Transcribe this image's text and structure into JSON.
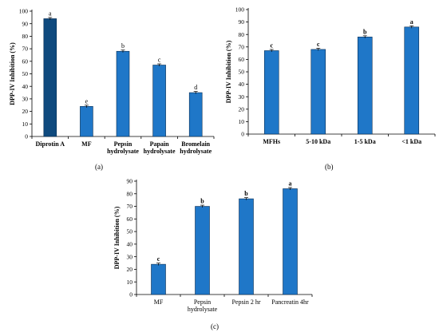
{
  "panel_labels": {
    "a": "(a)",
    "b": "(b)",
    "c": "(c)"
  },
  "colors": {
    "bar": "#1f77c8",
    "bar_dark": "#0f4a7e",
    "bar_edge": "#0a2e52"
  },
  "chart_data": [
    {
      "id": "a",
      "type": "bar",
      "ylabel": "DPP-IV Inhibition (%)",
      "xlabel": "",
      "ylim": [
        0,
        100
      ],
      "yticks": [
        0,
        10,
        20,
        30,
        40,
        50,
        60,
        70,
        80,
        90,
        100
      ],
      "categories": [
        [
          "Diprotin A"
        ],
        [
          "MF"
        ],
        [
          "Pepsin",
          "hydrolysate"
        ],
        [
          "Papain",
          "hydrolysate"
        ],
        [
          "Bromelain",
          "hydrolysate"
        ]
      ],
      "values": [
        94,
        24,
        68,
        57,
        35
      ],
      "letters": [
        "a",
        "e",
        "b",
        "c",
        "d"
      ],
      "highlight": [
        0
      ]
    },
    {
      "id": "b",
      "type": "bar",
      "ylabel": "DPP-IV Inhibition (%)",
      "xlabel": "",
      "ylim": [
        0,
        100
      ],
      "yticks": [
        0,
        10,
        20,
        30,
        40,
        50,
        60,
        70,
        80,
        90,
        100
      ],
      "categories": [
        [
          "MFHs"
        ],
        [
          "5-10 kDa"
        ],
        [
          "1-5 kDa"
        ],
        [
          "<1 kDa"
        ]
      ],
      "values": [
        67,
        68,
        78,
        86
      ],
      "letters": [
        "c",
        "c",
        "b",
        "a"
      ],
      "highlight": []
    },
    {
      "id": "c",
      "type": "bar",
      "ylabel": "DPP-IV Inhibition (%)",
      "xlabel": "",
      "ylim": [
        0,
        90
      ],
      "yticks": [
        0,
        10,
        20,
        30,
        40,
        50,
        60,
        70,
        80,
        90
      ],
      "categories": [
        [
          "MF"
        ],
        [
          "Pepsin",
          "hydrolysate"
        ],
        [
          "Pepsin 2 hr"
        ],
        [
          "Pancreatin 4hr"
        ]
      ],
      "values": [
        24,
        70,
        76,
        84
      ],
      "letters": [
        "c",
        "b",
        "b",
        "a"
      ],
      "highlight": []
    }
  ]
}
